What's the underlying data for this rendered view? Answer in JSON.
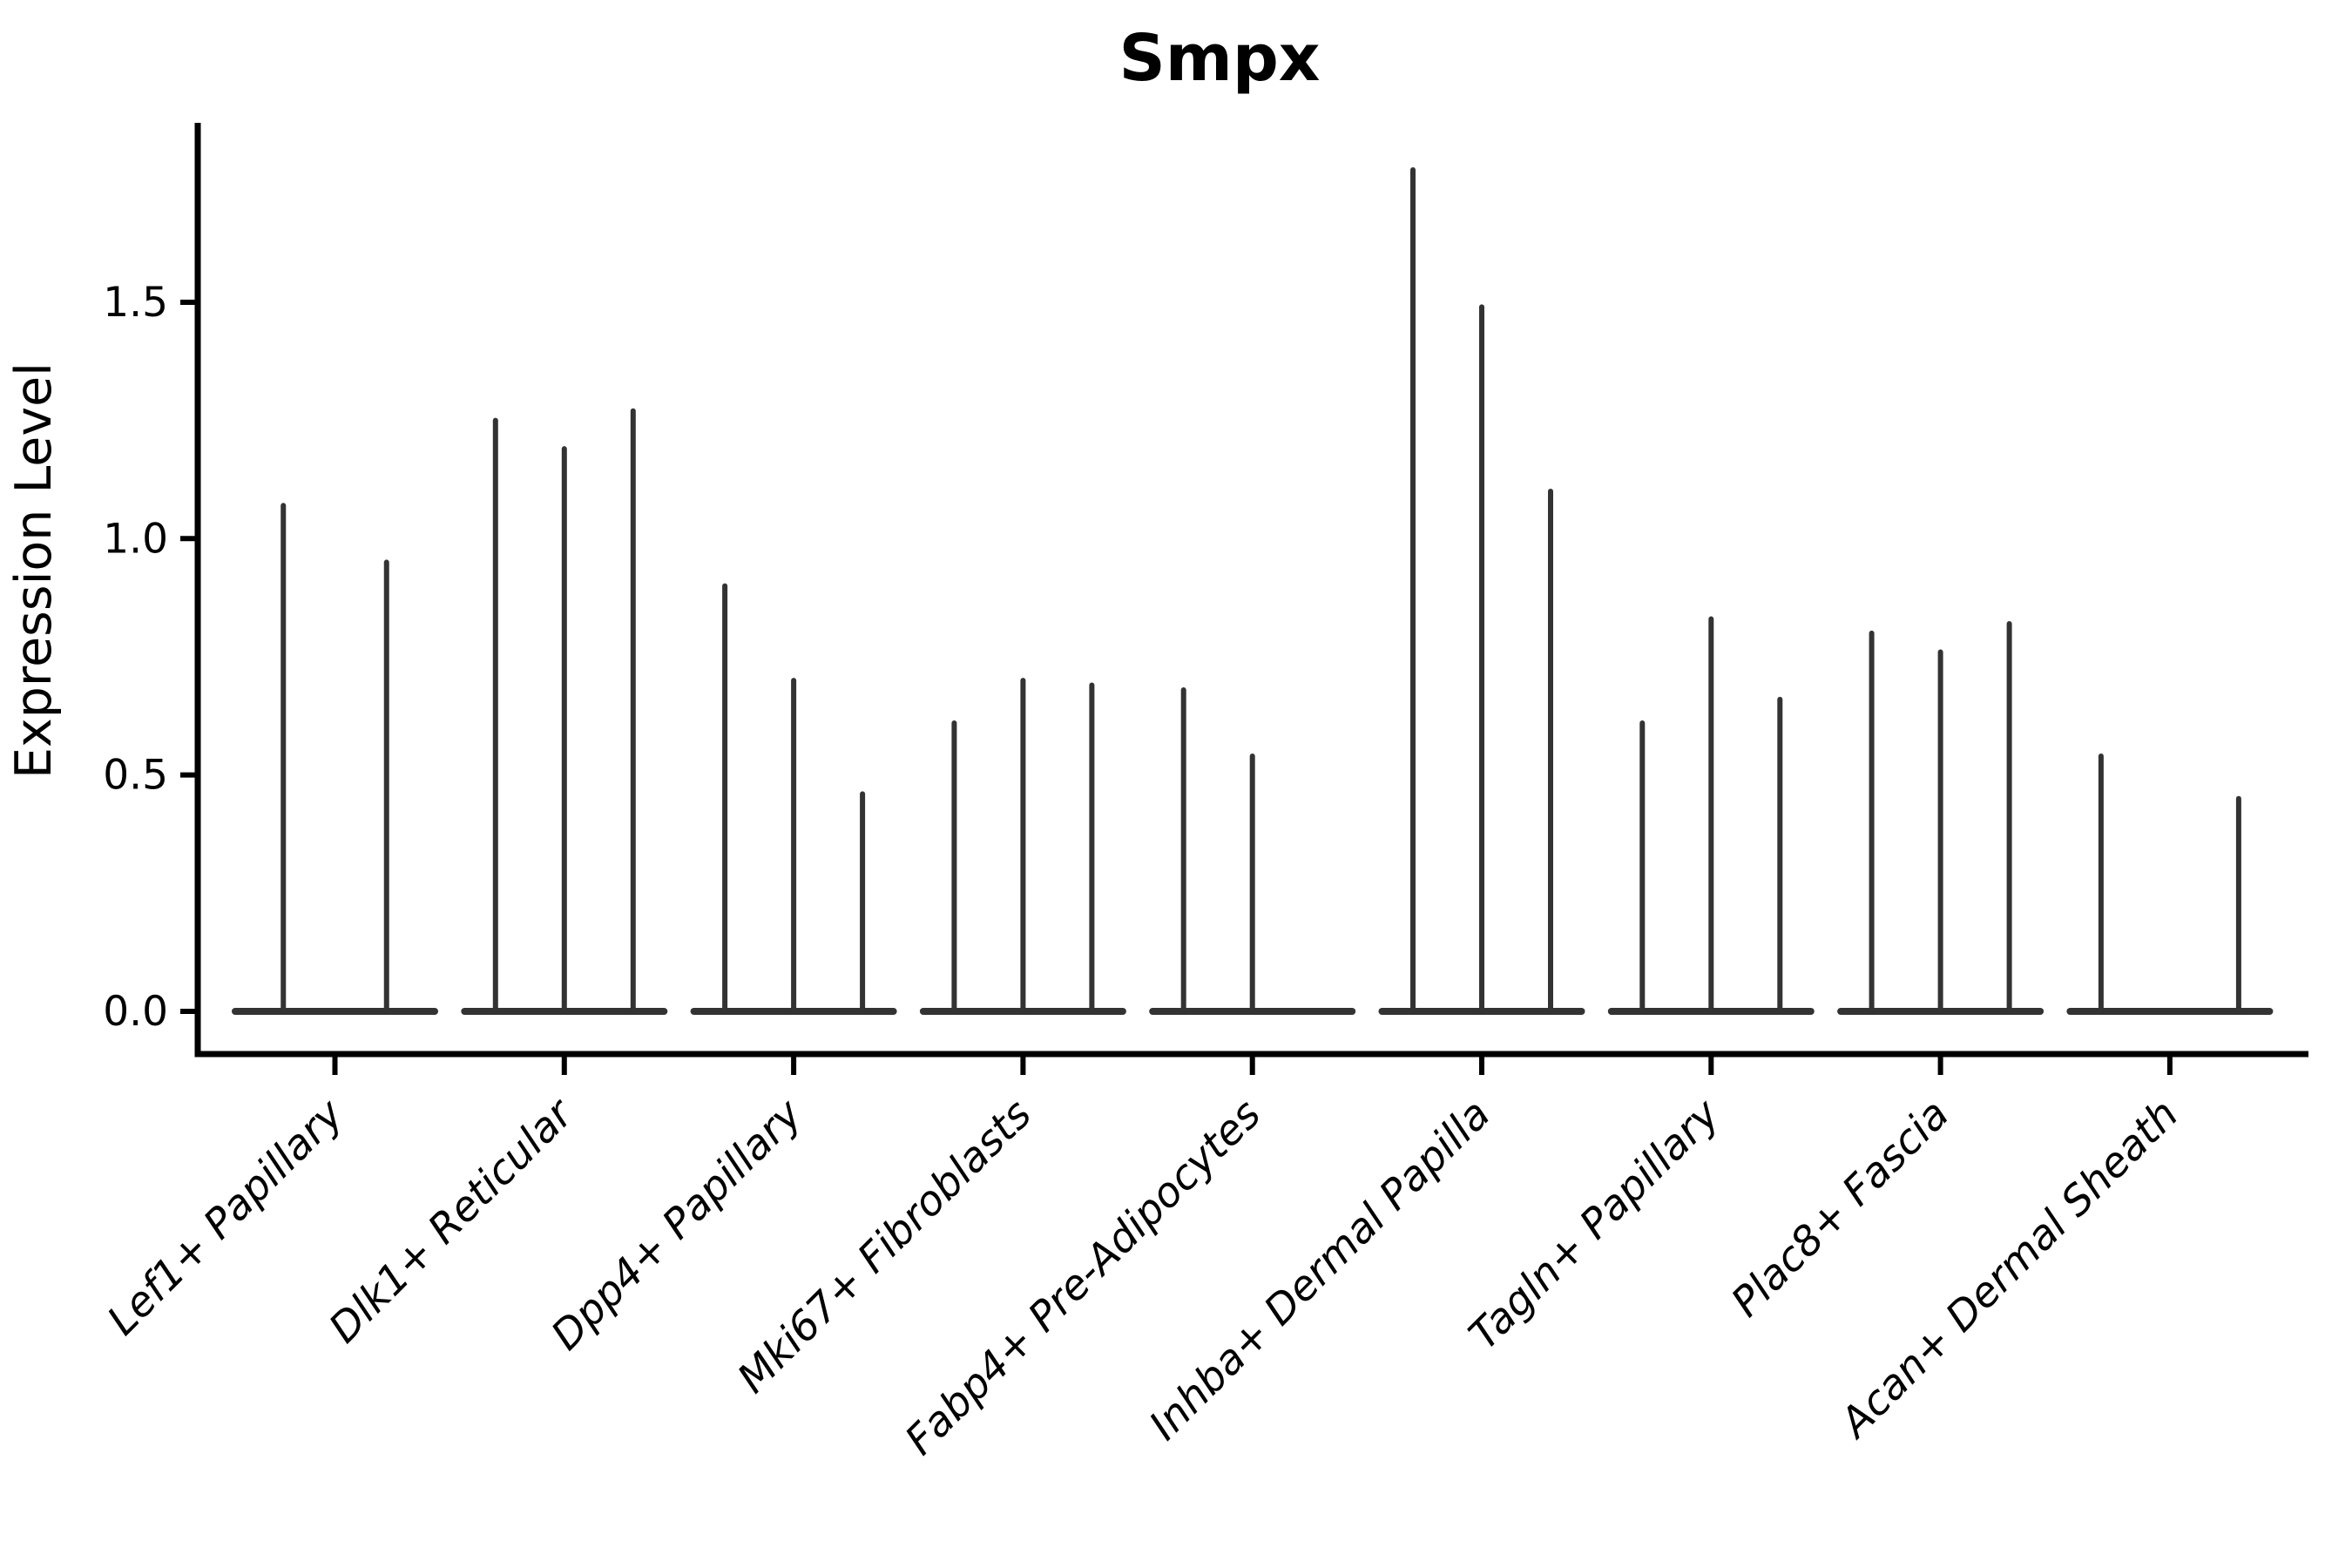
{
  "figure": {
    "background": "#ffffff"
  },
  "chart_data": {
    "type": "violin",
    "title": "Smpx",
    "xlabel": "",
    "ylabel": "Expression Level",
    "categories": [
      "Lef1+ Papillary",
      "Dlk1+ Reticular",
      "Dpp4+ Papillary",
      "Mki67+ Fibroblasts",
      "Fabp4+ Pre-Adipocytes",
      "Inhba+ Dermal Papilla",
      "Tagln+ Papillary",
      "Plac8+ Fascia",
      "Acan+ Dermal Sheath"
    ],
    "series": [
      {
        "category": "Lef1+ Papillary",
        "violin_peaks": [
          1.07,
          0.95
        ]
      },
      {
        "category": "Dlk1+ Reticular",
        "violin_peaks": [
          1.25,
          1.19,
          1.27
        ]
      },
      {
        "category": "Dpp4+ Papillary",
        "violin_peaks": [
          0.9,
          0.7,
          0.46
        ]
      },
      {
        "category": "Mki67+ Fibroblasts",
        "violin_peaks": [
          0.61,
          0.7,
          0.69
        ]
      },
      {
        "category": "Fabp4+ Pre-Adipocytes",
        "violin_peaks": [
          0.68,
          0.54,
          0
        ]
      },
      {
        "category": "Inhba+ Dermal Papilla",
        "violin_peaks": [
          1.78,
          1.49,
          1.1
        ]
      },
      {
        "category": "Tagln+ Papillary",
        "violin_peaks": [
          0.61,
          0.83,
          0.66
        ]
      },
      {
        "category": "Plac8+ Fascia",
        "violin_peaks": [
          0.8,
          0.76,
          0.82
        ]
      },
      {
        "category": "Acan+ Dermal Sheath",
        "violin_peaks": [
          0.54,
          0,
          0.45
        ]
      }
    ],
    "yticks": [
      "0.0",
      "0.5",
      "1.0",
      "1.5"
    ],
    "ylim": [
      0,
      1.88
    ],
    "grid": false,
    "legend": "none",
    "x_tick_rotation_deg": 45,
    "colors": {
      "violin": "#333333",
      "spine": "#000000",
      "text": "#000000",
      "background": "#ffffff"
    }
  }
}
